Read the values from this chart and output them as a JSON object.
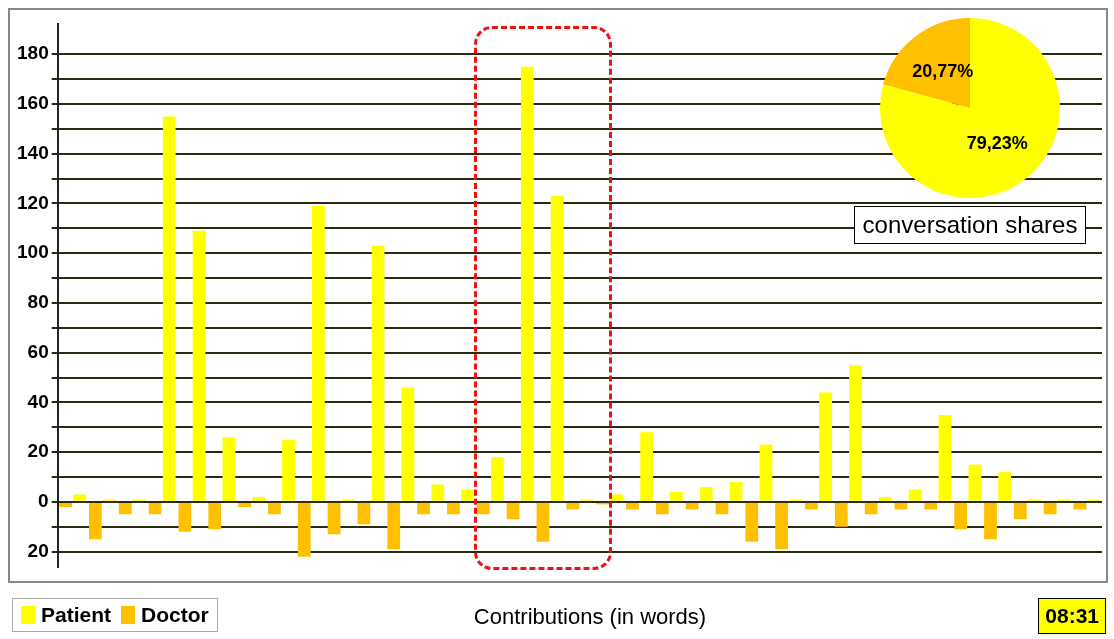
{
  "chart_data": [
    {
      "type": "bar",
      "xlabel": "Contributions (in words)",
      "categories": [
        null,
        null,
        null,
        null,
        null,
        null,
        null,
        null,
        null,
        null,
        null,
        null,
        null,
        null,
        null,
        null,
        null,
        null,
        null,
        null,
        null,
        null,
        null,
        null,
        null,
        null,
        null,
        null,
        null,
        null,
        null,
        null,
        null,
        null,
        null
      ],
      "series": [
        {
          "name": "Patient",
          "color": "#ffff00",
          "values": [
            3,
            1,
            1,
            155,
            109,
            26,
            2,
            25,
            119,
            1,
            103,
            46,
            7,
            5,
            18,
            175,
            123,
            1,
            3,
            28,
            4,
            6,
            8,
            23,
            1,
            44,
            55,
            2,
            5,
            35,
            15,
            12,
            1,
            1,
            1
          ]
        },
        {
          "name": "Doctor",
          "color": "#ffc000",
          "values": [
            -2,
            -15,
            -5,
            -5,
            -12,
            -11,
            -2,
            -5,
            -22,
            -13,
            -9,
            -19,
            -5,
            -5,
            -5,
            -7,
            -16,
            -3,
            -1,
            -3,
            -5,
            -3,
            -5,
            -16,
            -19,
            -3,
            -10,
            -5,
            -3,
            -3,
            -11,
            -15,
            -7,
            -5,
            -3
          ]
        }
      ],
      "ylim": [
        -26,
        192
      ],
      "yticks": [
        {
          "value": -20,
          "label": "20"
        },
        {
          "value": -10,
          "label": null
        },
        0,
        {
          "value": 10,
          "label": null
        },
        20,
        {
          "value": 30,
          "label": null
        },
        40,
        {
          "value": 50,
          "label": null
        },
        60,
        {
          "value": 70,
          "label": null
        },
        80,
        {
          "value": 90,
          "label": null
        },
        100,
        {
          "value": 110,
          "label": null
        },
        120,
        {
          "value": 130,
          "label": null
        },
        140,
        {
          "value": 150,
          "label": null
        },
        160,
        {
          "value": 170,
          "label": null
        },
        180
      ],
      "grid": "y",
      "legend": "bottom left",
      "tick_labels": "y",
      "annotations": [
        "08:31"
      ]
    },
    {
      "type": "pie",
      "title": "conversation shares",
      "categories": [
        null,
        null
      ],
      "values": [
        79.23,
        20.77
      ],
      "colors": [
        "#ffff00",
        "#ffc000"
      ],
      "value_labels": [
        "79,23%",
        "20,77%"
      ],
      "legend": false
    }
  ]
}
